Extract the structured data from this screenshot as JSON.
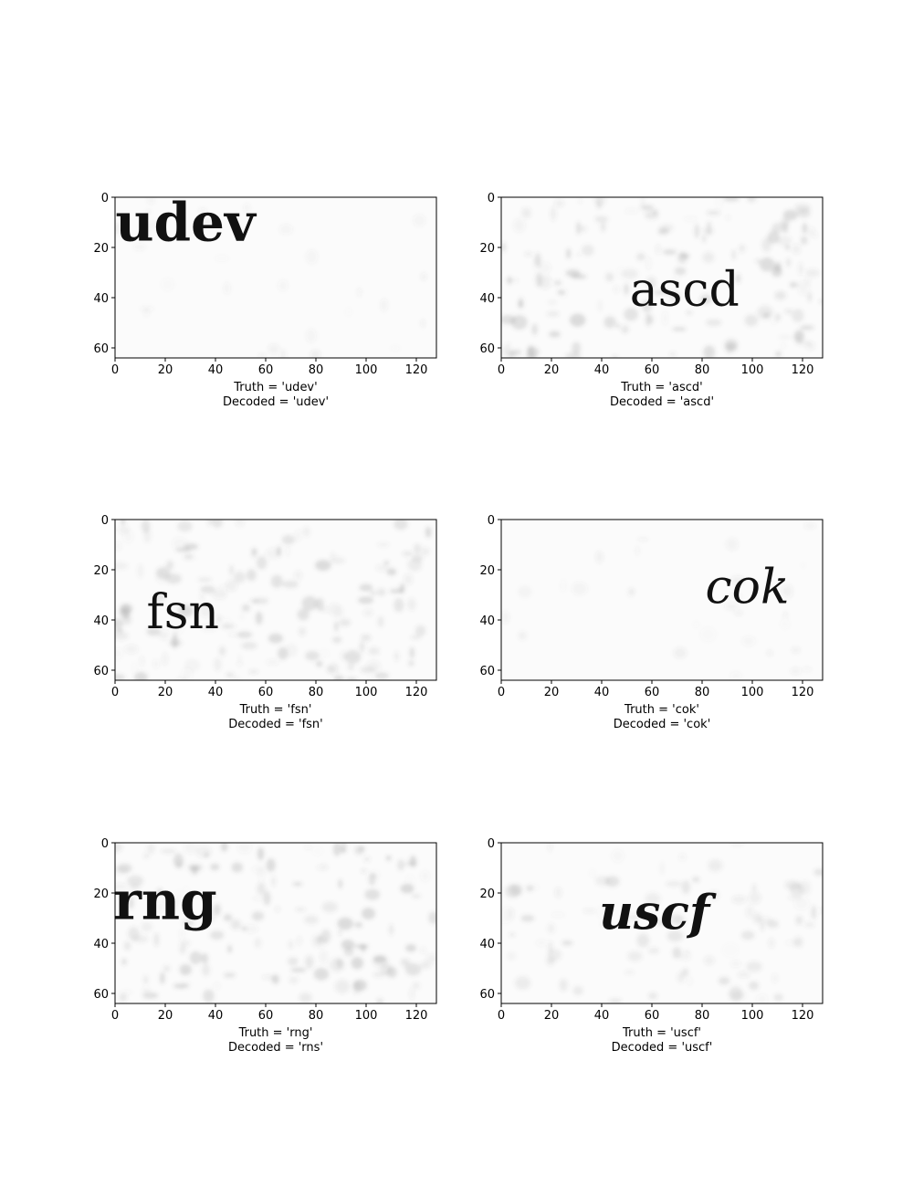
{
  "chart_data": [
    {
      "type": "image",
      "image_text": "udev",
      "text_position": [
        28,
        10
      ],
      "text_style": "bold",
      "noise": "light",
      "xlim": [
        0,
        128
      ],
      "ylim": [
        64,
        0
      ],
      "xticks": [
        0,
        20,
        40,
        60,
        80,
        100,
        120
      ],
      "yticks": [
        0,
        20,
        40,
        60
      ],
      "truth_label": "Truth = 'udev'",
      "decoded_label": "Decoded = 'udev'"
    },
    {
      "type": "image",
      "image_text": "ascd",
      "text_position": [
        73,
        37
      ],
      "text_style": "regular",
      "noise": "heavy",
      "xlim": [
        0,
        128
      ],
      "ylim": [
        64,
        0
      ],
      "xticks": [
        0,
        20,
        40,
        60,
        80,
        100,
        120
      ],
      "yticks": [
        0,
        20,
        40,
        60
      ],
      "truth_label": "Truth = 'ascd'",
      "decoded_label": "Decoded = 'ascd'"
    },
    {
      "type": "image",
      "image_text": "fsn",
      "text_position": [
        27,
        37
      ],
      "text_style": "regular",
      "noise": "heavy",
      "xlim": [
        0,
        128
      ],
      "ylim": [
        64,
        0
      ],
      "xticks": [
        0,
        20,
        40,
        60,
        80,
        100,
        120
      ],
      "yticks": [
        0,
        20,
        40,
        60
      ],
      "truth_label": "Truth = 'fsn'",
      "decoded_label": "Decoded = 'fsn'"
    },
    {
      "type": "image",
      "image_text": "cok",
      "text_position": [
        98,
        27
      ],
      "text_style": "italic",
      "noise": "light",
      "xlim": [
        0,
        128
      ],
      "ylim": [
        64,
        0
      ],
      "xticks": [
        0,
        20,
        40,
        60,
        80,
        100,
        120
      ],
      "yticks": [
        0,
        20,
        40,
        60
      ],
      "truth_label": "Truth = 'cok'",
      "decoded_label": "Decoded = 'cok'"
    },
    {
      "type": "image",
      "image_text": "rng",
      "text_position": [
        20,
        23
      ],
      "text_style": "bold",
      "noise": "heavy",
      "xlim": [
        0,
        128
      ],
      "ylim": [
        64,
        0
      ],
      "xticks": [
        0,
        20,
        40,
        60,
        80,
        100,
        120
      ],
      "yticks": [
        0,
        20,
        40,
        60
      ],
      "truth_label": "Truth = 'rng'",
      "decoded_label": "Decoded = 'rns'"
    },
    {
      "type": "image",
      "image_text": "uscf",
      "text_position": [
        61,
        28
      ],
      "text_style": "bold-italic",
      "noise": "medium",
      "xlim": [
        0,
        128
      ],
      "ylim": [
        64,
        0
      ],
      "xticks": [
        0,
        20,
        40,
        60,
        80,
        100,
        120
      ],
      "yticks": [
        0,
        20,
        40,
        60
      ],
      "truth_label": "Truth = 'uscf'",
      "decoded_label": "Decoded = 'uscf'"
    }
  ]
}
